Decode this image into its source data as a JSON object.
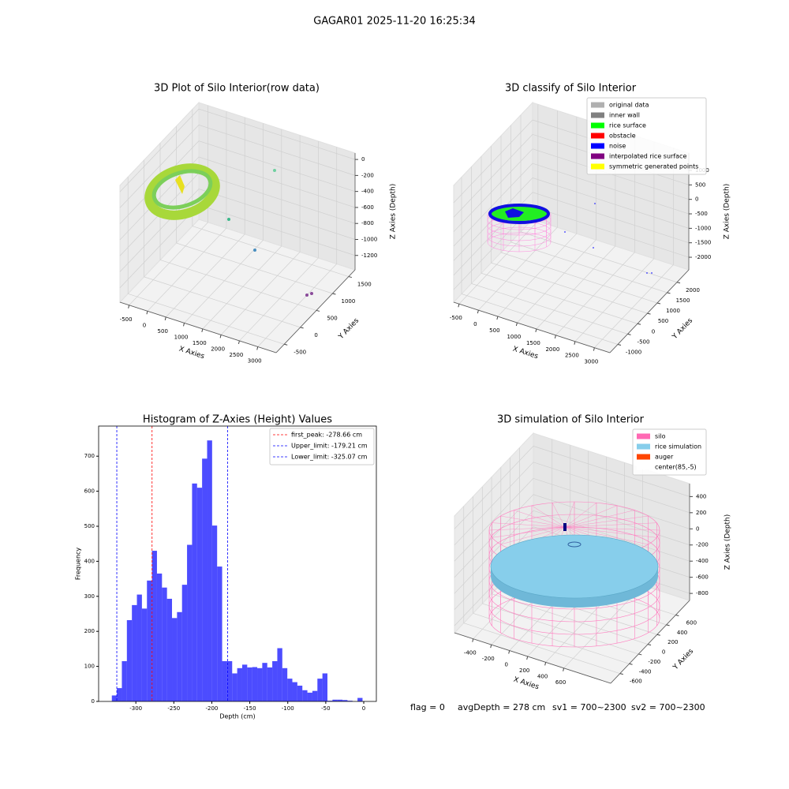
{
  "suptitle": "GAGAR01 2025-11-20 16:25:34",
  "status": [
    "flag = 0",
    "avgDepth = 278 cm",
    "sv1 = 700~2300",
    "sv2 = 700~2300"
  ],
  "chart_data": [
    {
      "type": "scatter3d",
      "title": "3D Plot of Silo Interior(row data)",
      "xlabel": "X Axies",
      "ylabel": "Y Axies",
      "zlabel": "Z Axies (Depth)",
      "xlim": [
        -750,
        3500
      ],
      "xticks": [
        -500,
        0,
        500,
        1000,
        1500,
        2000,
        2500,
        3000
      ],
      "ylim": [
        -750,
        1700
      ],
      "yticks": [
        -500,
        0,
        500,
        1000,
        1500
      ],
      "zlim": [
        -1380,
        80
      ],
      "zticks": [
        -1200,
        -1000,
        -800,
        -600,
        -400,
        -200,
        0
      ],
      "grid": true
    },
    {
      "type": "scatter3d",
      "title": "3D classify of Silo Interior",
      "xlabel": "X Axies",
      "ylabel": "Y Axies",
      "zlabel": "Z Axies (Depth)",
      "xlim": [
        -640,
        3400
      ],
      "xticks": [
        -500,
        0,
        500,
        1000,
        1500,
        2000,
        2500,
        3000
      ],
      "ylim": [
        -1400,
        2600
      ],
      "yticks": [
        -1000,
        -500,
        0,
        500,
        1000,
        1500,
        2000
      ],
      "zlim": [
        -2435,
        1600
      ],
      "zticks": [
        -2000,
        -1500,
        -1000,
        -500,
        0,
        500,
        1000
      ],
      "grid": true,
      "legend": [
        {
          "name": "original data",
          "color": "#b0b0b0"
        },
        {
          "name": "inner wall",
          "color": "#808080"
        },
        {
          "name": "rice surface",
          "color": "#00ff00"
        },
        {
          "name": "obstacle",
          "color": "#ff0000"
        },
        {
          "name": "noise",
          "color": "#0000ff"
        },
        {
          "name": "interpolated rice surface",
          "color": "#800080"
        },
        {
          "name": "symmetric generated points",
          "color": "#ffff00"
        }
      ]
    },
    {
      "type": "histogram",
      "title": "Histogram of Z-Axies (Height) Values",
      "xlabel": "Depth (cm)",
      "ylabel": "Frequency",
      "color": "#0000ff",
      "alpha": 0.7,
      "bins": [
        -331.6,
        -325.0,
        -318.4,
        -311.8,
        -305.2,
        -298.6,
        -292.0,
        -285.4,
        -278.8,
        -272.2,
        -265.6,
        -259.0,
        -252.4,
        -245.8,
        -239.2,
        -232.6,
        -226.0,
        -219.4,
        -212.8,
        -206.2,
        -199.6,
        -193.0,
        -186.4,
        -179.8,
        -173.2,
        -166.6,
        -160.0,
        -153.4,
        -146.8,
        -140.2,
        -133.6,
        -127.0,
        -120.4,
        -113.8,
        -107.2,
        -100.6,
        -94.0,
        -87.4,
        -80.8,
        -74.2,
        -67.6,
        -61.0,
        -54.4,
        -47.8,
        -41.2,
        -34.6,
        -28.0,
        -21.4,
        -14.8,
        -8.2,
        -1.6
      ],
      "values": [
        17,
        38,
        115,
        232,
        275,
        305,
        265,
        345,
        430,
        365,
        325,
        293,
        238,
        255,
        333,
        447,
        622,
        610,
        693,
        745,
        502,
        385,
        115,
        115,
        80,
        95,
        105,
        97,
        98,
        95,
        110,
        97,
        115,
        152,
        95,
        65,
        55,
        45,
        32,
        25,
        30,
        65,
        80,
        2,
        5,
        5,
        4,
        2,
        0,
        10
      ],
      "xlim": [
        -349,
        16.6
      ],
      "xticks": [
        -300,
        -250,
        -200,
        -150,
        -100,
        -50,
        0
      ],
      "ylim": [
        0,
        786
      ],
      "yticks": [
        0,
        100,
        200,
        300,
        400,
        500,
        600,
        700
      ],
      "vlines": [
        {
          "label": "first_peak: -278.66 cm",
          "value": -278.66,
          "color": "#ff0000"
        },
        {
          "label": "Upper_limit: -179.21 cm",
          "value": -179.21,
          "color": "#0000ff"
        },
        {
          "label": "Lower_limit: -325.07 cm",
          "value": -325.07,
          "color": "#0000ff"
        }
      ]
    },
    {
      "type": "scatter3d",
      "title": "3D simulation of Silo Interior",
      "xlabel": "X Axies",
      "ylabel": "Y Axies",
      "zlabel": "Z Axies (Depth)",
      "xlim": [
        -607,
        1117
      ],
      "xticks": [
        -400,
        -200,
        0,
        200,
        400,
        600
      ],
      "ylim": [
        -800,
        900
      ],
      "yticks": [
        -600,
        -400,
        -200,
        0,
        200,
        400,
        600
      ],
      "zlim": [
        -887,
        560
      ],
      "zticks": [
        -800,
        -600,
        -400,
        -200,
        0,
        200,
        400
      ],
      "grid": true,
      "legend": [
        {
          "name": "silo",
          "color": "#ff69b4"
        },
        {
          "name": "rice simulation",
          "color": "#87ceeb"
        },
        {
          "name": "auger",
          "color": "#ff4500"
        },
        {
          "name": "center(85,-5)",
          "color": "#ffffff"
        }
      ]
    }
  ]
}
